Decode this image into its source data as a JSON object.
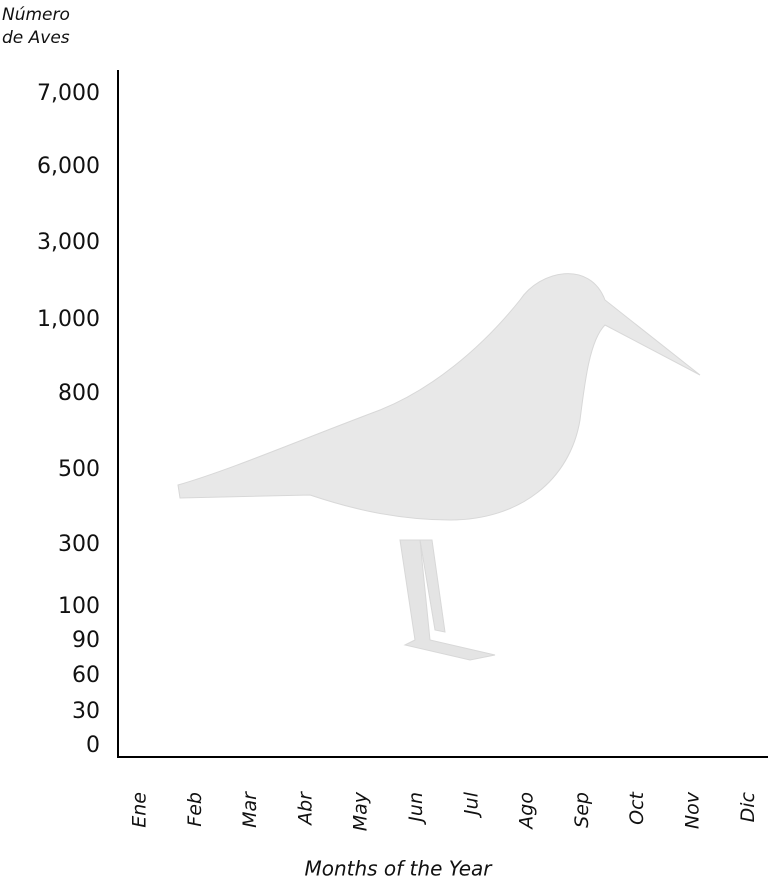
{
  "chart_data": {
    "type": "line",
    "y_label": "Número de Aves",
    "x_label": "Months of the Year",
    "categories": [
      "Ene",
      "Feb",
      "Mar",
      "Abr",
      "May",
      "Jun",
      "Jul",
      "Ago",
      "Sep",
      "Oct",
      "Nov",
      "Dic"
    ],
    "ylim": [
      0,
      7000
    ],
    "yticks": [
      {
        "value": 7000,
        "label": "7,000"
      },
      {
        "value": 6000,
        "label": "6,000"
      },
      {
        "value": 3000,
        "label": "3,000"
      },
      {
        "value": 1000,
        "label": "1,000"
      },
      800,
      500,
      300,
      100,
      90,
      60,
      30,
      0
    ],
    "grid": false
  }
}
